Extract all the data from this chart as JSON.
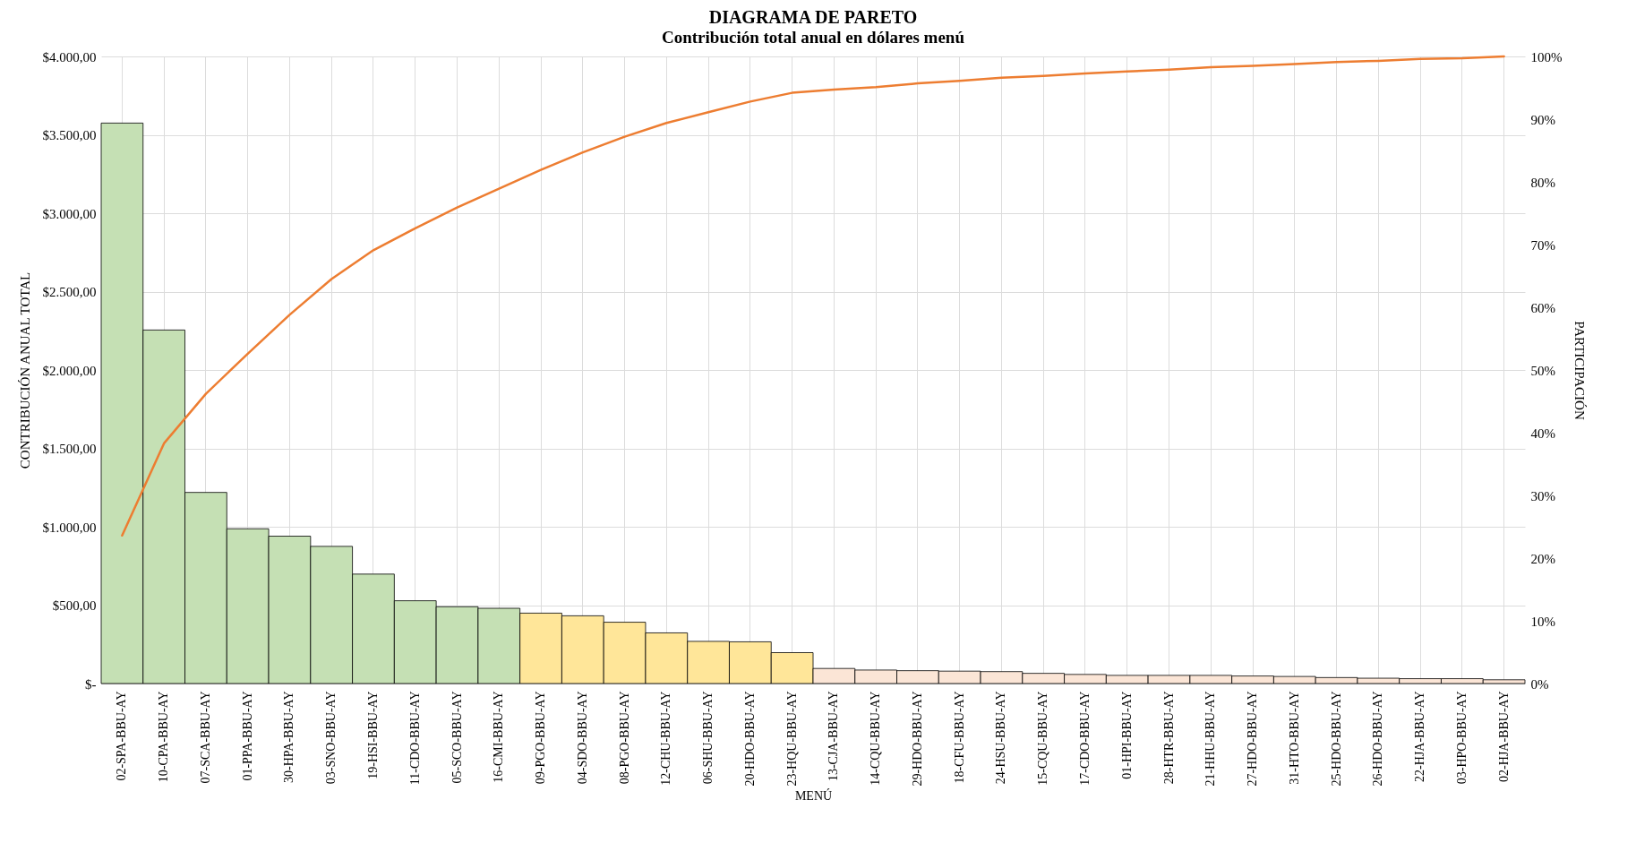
{
  "chart_data": {
    "type": "bar",
    "title": "DIAGRAMA DE PARETO",
    "subtitle": "Contribución total anual en dólares menú",
    "xlabel": "MENÚ",
    "ylabel": "CONTRIBUCIÓN ANUAL TOTAL",
    "y2label": "PARTICIPACIÓN",
    "categories": [
      "02-SPA-BBU-AY",
      "10-CPA-BBU-AY",
      "07-SCA-BBU-AY",
      "01-PPA-BBU-AY",
      "30-HPA-BBU-AY",
      "03-SNO-BBU-AY",
      "19-HSI-BBU-AY",
      "11-CDO-BBU-AY",
      "05-SCO-BBU-AY",
      "16-CMI-BBU-AY",
      "09-PGO-BBU-AY",
      "04-SDO-BBU-AY",
      "08-PGO-BBU-AY",
      "12-CHU-BBU-AY",
      "06-SHU-BBU-AY",
      "20-HDO-BBU-AY",
      "23-HQU-BBU-AY",
      "13-CJA-BBU-AY",
      "14-CQU-BBU-AY",
      "29-HDO-BBU-AY",
      "18-CFU-BBU-AY",
      "24-HSU-BBU-AY",
      "15-CQU-BBU-AY",
      "17-CDO-BBU-AY",
      "01-HPI-BBU-AY",
      "28-HTR-BBU-AY",
      "21-HHU-BBU-AY",
      "27-HDO-BBU-AY",
      "31-HTO-BBU-AY",
      "25-HDO-BBU-AY",
      "26-HDO-BBU-AY",
      "22-HJA-BBU-AY",
      "03-HPO-BBU-AY",
      "02-HJA-BBU-AY"
    ],
    "series": [
      {
        "colors": [
          "#c5e0b4",
          "#c5e0b4",
          "#c5e0b4",
          "#c5e0b4",
          "#c5e0b4",
          "#c5e0b4",
          "#c5e0b4",
          "#c5e0b4",
          "#c5e0b4",
          "#c5e0b4",
          "#ffe699",
          "#ffe699",
          "#ffe699",
          "#ffe699",
          "#ffe699",
          "#ffe699",
          "#ffe699",
          "#fbe5d6",
          "#fbe5d6",
          "#fbe5d6",
          "#fbe5d6",
          "#fbe5d6",
          "#fbe5d6",
          "#fbe5d6",
          "#fbe5d6",
          "#fbe5d6",
          "#fbe5d6",
          "#fbe5d6",
          "#fbe5d6",
          "#fbe5d6",
          "#fbe5d6",
          "#fbe5d6",
          "#fbe5d6",
          "#fbe5d6"
        ],
        "values": [
          3575,
          2255,
          1219,
          987,
          940,
          875,
          698,
          528,
          490,
          480,
          449,
          432,
          391,
          323,
          269,
          266,
          197,
          96,
          86,
          82,
          79,
          76,
          65,
          58,
          52,
          52,
          52,
          48,
          45,
          38,
          34,
          31,
          31,
          24
        ]
      },
      {
        "type": "line",
        "axis": "y2",
        "color": "#ed7d31",
        "values": [
          23.6,
          38.3,
          46.2,
          52.6,
          58.8,
          64.5,
          69.1,
          72.6,
          75.9,
          78.9,
          81.9,
          84.7,
          87.2,
          89.4,
          91.1,
          92.8,
          94.2,
          94.7,
          95.1,
          95.7,
          96.1,
          96.6,
          96.9,
          97.3,
          97.6,
          97.9,
          98.3,
          98.5,
          98.8,
          99.1,
          99.3,
          99.6,
          99.7,
          100
        ]
      }
    ],
    "ylim": [
      0,
      4000
    ],
    "yticks": [
      {
        "value": 0,
        "label": "$-"
      },
      {
        "value": 500,
        "label": "$500,00"
      },
      {
        "value": 1000,
        "label": "$1.000,00"
      },
      {
        "value": 1500,
        "label": "$1.500,00"
      },
      {
        "value": 2000,
        "label": "$2.000,00"
      },
      {
        "value": 2500,
        "label": "$2.500,00"
      },
      {
        "value": 3000,
        "label": "$3.000,00"
      },
      {
        "value": 3500,
        "label": "$3.500,00"
      },
      {
        "value": 4000,
        "label": "$4.000,00"
      }
    ],
    "y2lim": [
      0,
      100
    ],
    "y2ticks": [
      {
        "value": 0,
        "label": "0%"
      },
      {
        "value": 10,
        "label": "10%"
      },
      {
        "value": 20,
        "label": "20%"
      },
      {
        "value": 30,
        "label": "30%"
      },
      {
        "value": 40,
        "label": "40%"
      },
      {
        "value": 50,
        "label": "50%"
      },
      {
        "value": 60,
        "label": "60%"
      },
      {
        "value": 70,
        "label": "70%"
      },
      {
        "value": 80,
        "label": "80%"
      },
      {
        "value": 90,
        "label": "90%"
      },
      {
        "value": 100,
        "label": "100%"
      }
    ],
    "grid": true
  }
}
